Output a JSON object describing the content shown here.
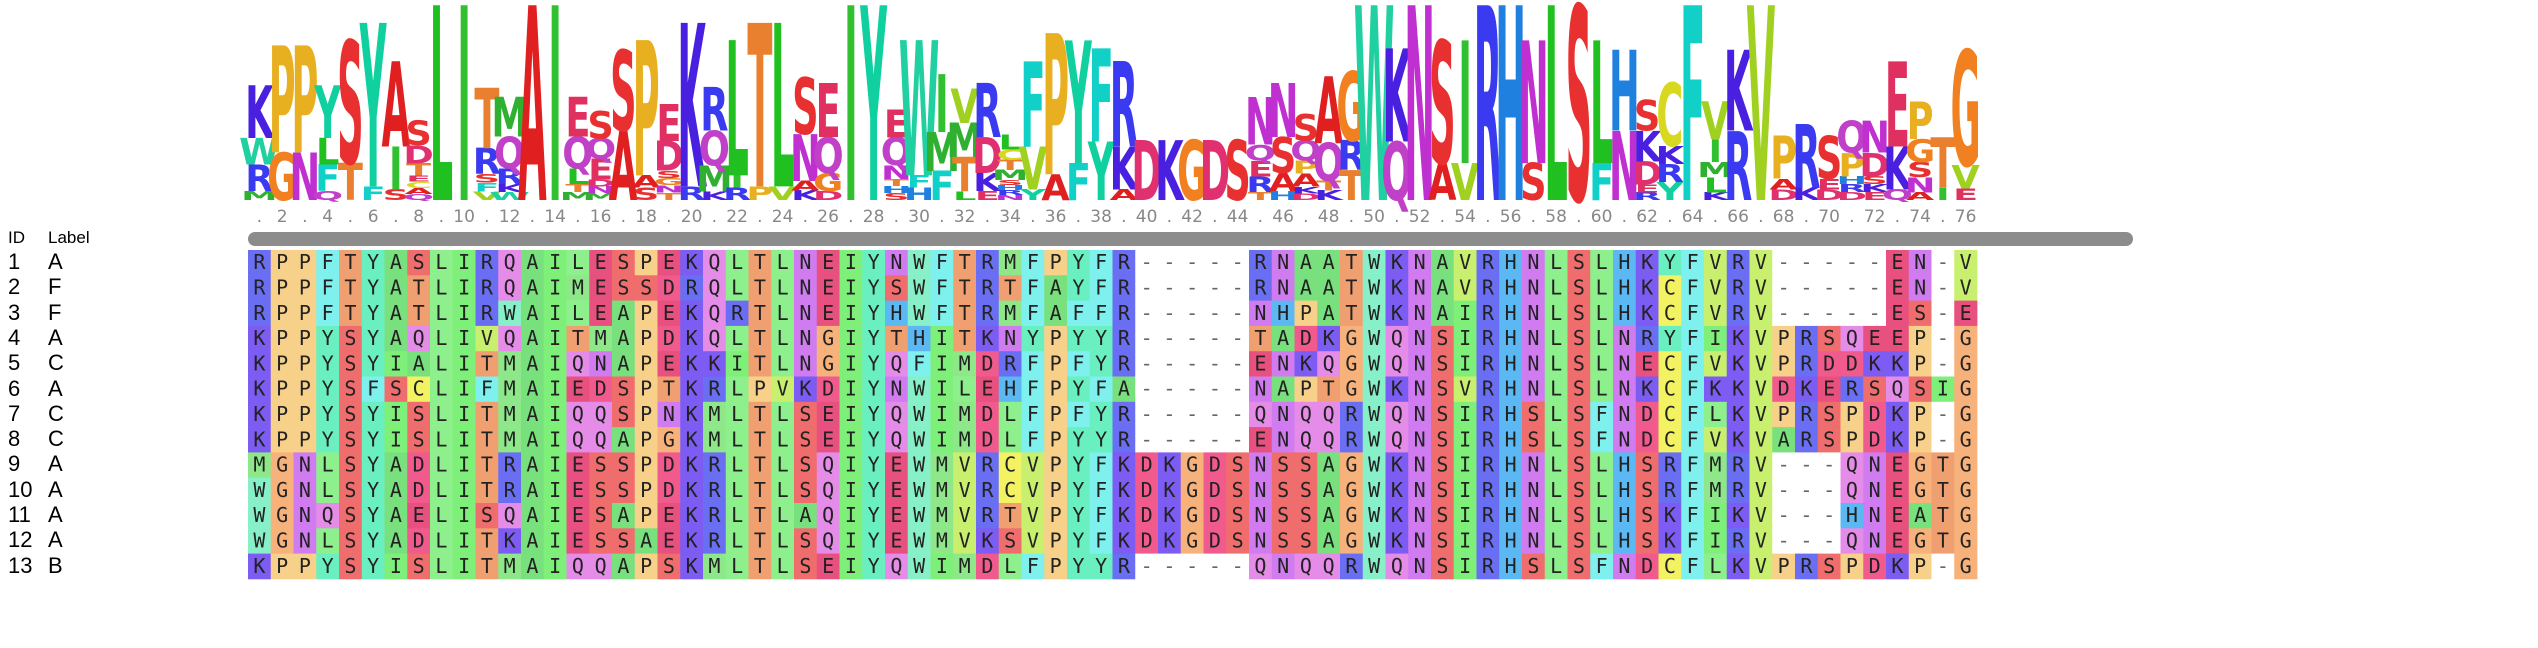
{
  "header": {
    "id_label": "ID",
    "label_label": "Label"
  },
  "positions": ". 2 . 4 . 6 . 8 . 10 . 12 . 14 . 16 . 18 . 20 . 22 . 24 . 26 . 28 . 30 . 32 . 34 . 36 . 38 . 40 . 42 . 44 . 46 . 48 . 50 . 52 . 54 . 56 . 58 . 60 . 62 . 64 . 66 . 68 . 70 . 72 . 74 . 76",
  "sequences": [
    {
      "id": "1",
      "label": "A",
      "seq": "RPPFTYASLIRQAILESPEKQLTLNEIYNWFTRMFPYFR-----RNAATWKNAVRHNLSLHKYFVRV-----EN-V"
    },
    {
      "id": "2",
      "label": "F",
      "seq": "RPPFTYATLIRQAIMESSDRQLTLNEIYSWFTRTFAYFR-----RNAATWKNAVRHNLSLHKCFVRV-----EN-V"
    },
    {
      "id": "3",
      "label": "F",
      "seq": "RPPFTYATLIRWAILEAPEKQRTLNEIYHWFTRMFAFFR-----NHPATWKNAIRHNLSLHKCFVRV-----ES-E"
    },
    {
      "id": "4",
      "label": "A",
      "seq": "KPPYSYAQLIVQAITMAPDKQLTLNGIYTHITKNYPYYR-----TADKGWQNSIRHNLSLNRYFIKVPRSQEEP-G"
    },
    {
      "id": "5",
      "label": "C",
      "seq": "KPPYSYIALITMAIQNAPEKKITLNGIYQFIMDRFPFYR-----ENKQGWQNSIRHNLSLNECFVKVPRDDKKP-G"
    },
    {
      "id": "6",
      "label": "A",
      "seq": "KPPYSFSCLIFMAIEDSPTKRLPVKDIYNWILEHFPYFA-----NAPTGWKNSVRHNLSLNKCFKKVDKERSQSIG"
    },
    {
      "id": "7",
      "label": "C",
      "seq": "KPPYSYISLITMAIQQSPNKMLTLSEIYQWIMDLFPFYR-----QNQQRWQNSIRHSLSFNDCFLKVPRSPDKP-G"
    },
    {
      "id": "8",
      "label": "C",
      "seq": "KPPYSYISLITMAIQQAPGKMLTLSEIYQWIMDLFPYYR-----ENQQRWQNSIRHSLSFNDCFVKVARSPDKP-G"
    },
    {
      "id": "9",
      "label": "A",
      "seq": "MGNLSYADLITRAIESSPDKRLTLSQIYEWMVRCVPYFKDKGDSNSSAGWKNSIRHNLSLHSRFMRV---QNEGTG"
    },
    {
      "id": "10",
      "label": "A",
      "seq": "WGNLSYADLITRAIESSPDKRLTLSQIYEWMVRCVPYFKDKGDSNSSAGWKNSIRHNLSLHSRFMRV---QNEGTG"
    },
    {
      "id": "11",
      "label": "A",
      "seq": "WGNQSYAELISQAIESAPEKRLTLAQIYEWMVRTVPYFKDKGDSNSSAGWKNSIRHNLSLHSKFIKV---HNEATG"
    },
    {
      "id": "12",
      "label": "A",
      "seq": "WGNLSYADLITKAIESSAEKRLTLSQIYEWMVKSVPYFKDKGDSNSSAGWKNSIRHNLSLHSKFIRV---QNEGTG"
    },
    {
      "id": "13",
      "label": "B",
      "seq": "KPPYSYISLITMAIQQAPSKMLTLSEIYQWIMDLFPYYR-----QNQQRWQNSIRHSLSFNDCFLKVPRSPDKP-G"
    }
  ],
  "residue_colors": {
    "A": "#79e07e",
    "R": "#6a6ef2",
    "N": "#d07cf0",
    "D": "#f05a8c",
    "C": "#f2f263",
    "Q": "#e48ce8",
    "E": "#e7507f",
    "G": "#f7b27b",
    "H": "#5cb8f2",
    "I": "#7ef07a",
    "L": "#8df08c",
    "K": "#7c5cf3",
    "M": "#8ee88a",
    "F": "#7ef0ee",
    "P": "#f7d08a",
    "S": "#f06d6d",
    "T": "#f0a070",
    "W": "#88f0c8",
    "Y": "#6af0c0",
    "V": "#c8f06e",
    "-": "#ffffff"
  },
  "logo_colors": {
    "A": "#e02020",
    "R": "#3a3af0",
    "N": "#c030d0",
    "D": "#e03070",
    "C": "#d8d820",
    "Q": "#c040c8",
    "E": "#e03060",
    "G": "#f08020",
    "H": "#2080e0",
    "I": "#30c030",
    "L": "#20c020",
    "K": "#4a20e0",
    "M": "#30b030",
    "F": "#10d0c8",
    "P": "#e8b020",
    "S": "#e83030",
    "T": "#e88030",
    "W": "#20d0a0",
    "Y": "#10d0a0",
    "V": "#a0d020"
  }
}
